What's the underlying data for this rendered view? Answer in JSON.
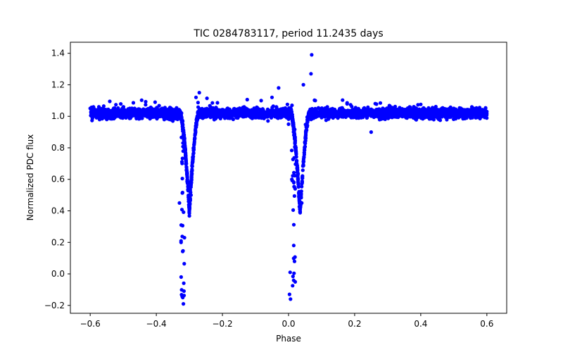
{
  "chart_data": {
    "type": "scatter",
    "title": "TIC 0284783117, period 11.2435 days",
    "xlabel": "Phase",
    "ylabel": "Normalized PDC flux",
    "xlim": [
      -0.66,
      0.66
    ],
    "ylim": [
      -0.25,
      1.47
    ],
    "xticks": [
      -0.6,
      -0.4,
      -0.2,
      0.0,
      0.2,
      0.4,
      0.6
    ],
    "xtick_labels": [
      "−0.6",
      "−0.4",
      "−0.2",
      "0.0",
      "0.2",
      "0.4",
      "0.6"
    ],
    "yticks": [
      -0.2,
      0.0,
      0.2,
      0.4,
      0.6,
      0.8,
      1.0,
      1.2,
      1.4
    ],
    "ytick_labels": [
      "−0.2",
      "0.0",
      "0.2",
      "0.4",
      "0.6",
      "0.8",
      "1.0",
      "1.2",
      "1.4"
    ],
    "grid": false,
    "series": [
      {
        "name": "flux",
        "color": "#0000ff",
        "baseline": 1.02,
        "scatter_band": [
          0.93,
          1.12
        ],
        "phase_range": [
          -0.6,
          0.6
        ],
        "eclipses": [
          {
            "name": "secondary",
            "phase_center": -0.3,
            "min_flux": 0.4,
            "outlier_low": -0.19
          },
          {
            "name": "primary",
            "phase_center": 0.035,
            "min_flux": 0.39,
            "outlier_low": -0.16
          }
        ],
        "sample_points": [
          [
            -0.6,
            1.05
          ],
          [
            -0.55,
            0.98
          ],
          [
            -0.5,
            1.06
          ],
          [
            -0.45,
            1.0
          ],
          [
            -0.4,
            1.03
          ],
          [
            -0.35,
            0.97
          ],
          [
            -0.33,
            0.45
          ],
          [
            -0.325,
            0.2
          ],
          [
            -0.32,
            -0.15
          ],
          [
            -0.318,
            -0.19
          ],
          [
            -0.31,
            0.7
          ],
          [
            -0.3,
            0.4
          ],
          [
            -0.295,
            0.5
          ],
          [
            -0.28,
            1.12
          ],
          [
            -0.27,
            1.15
          ],
          [
            -0.2,
            1.02
          ],
          [
            -0.1,
            1.04
          ],
          [
            -0.05,
            1.12
          ],
          [
            -0.03,
            1.18
          ],
          [
            0.0,
            0.95
          ],
          [
            0.005,
            0.01
          ],
          [
            0.003,
            -0.13
          ],
          [
            0.006,
            -0.16
          ],
          [
            0.01,
            0.6
          ],
          [
            0.035,
            0.39
          ],
          [
            0.04,
            0.45
          ],
          [
            0.045,
            1.2
          ],
          [
            0.068,
            1.27
          ],
          [
            0.07,
            1.39
          ],
          [
            0.1,
            1.05
          ],
          [
            0.2,
            1.02
          ],
          [
            0.25,
            0.9
          ],
          [
            0.3,
            1.03
          ],
          [
            0.4,
            1.0
          ],
          [
            0.5,
            1.05
          ],
          [
            0.6,
            1.03
          ]
        ]
      }
    ]
  }
}
